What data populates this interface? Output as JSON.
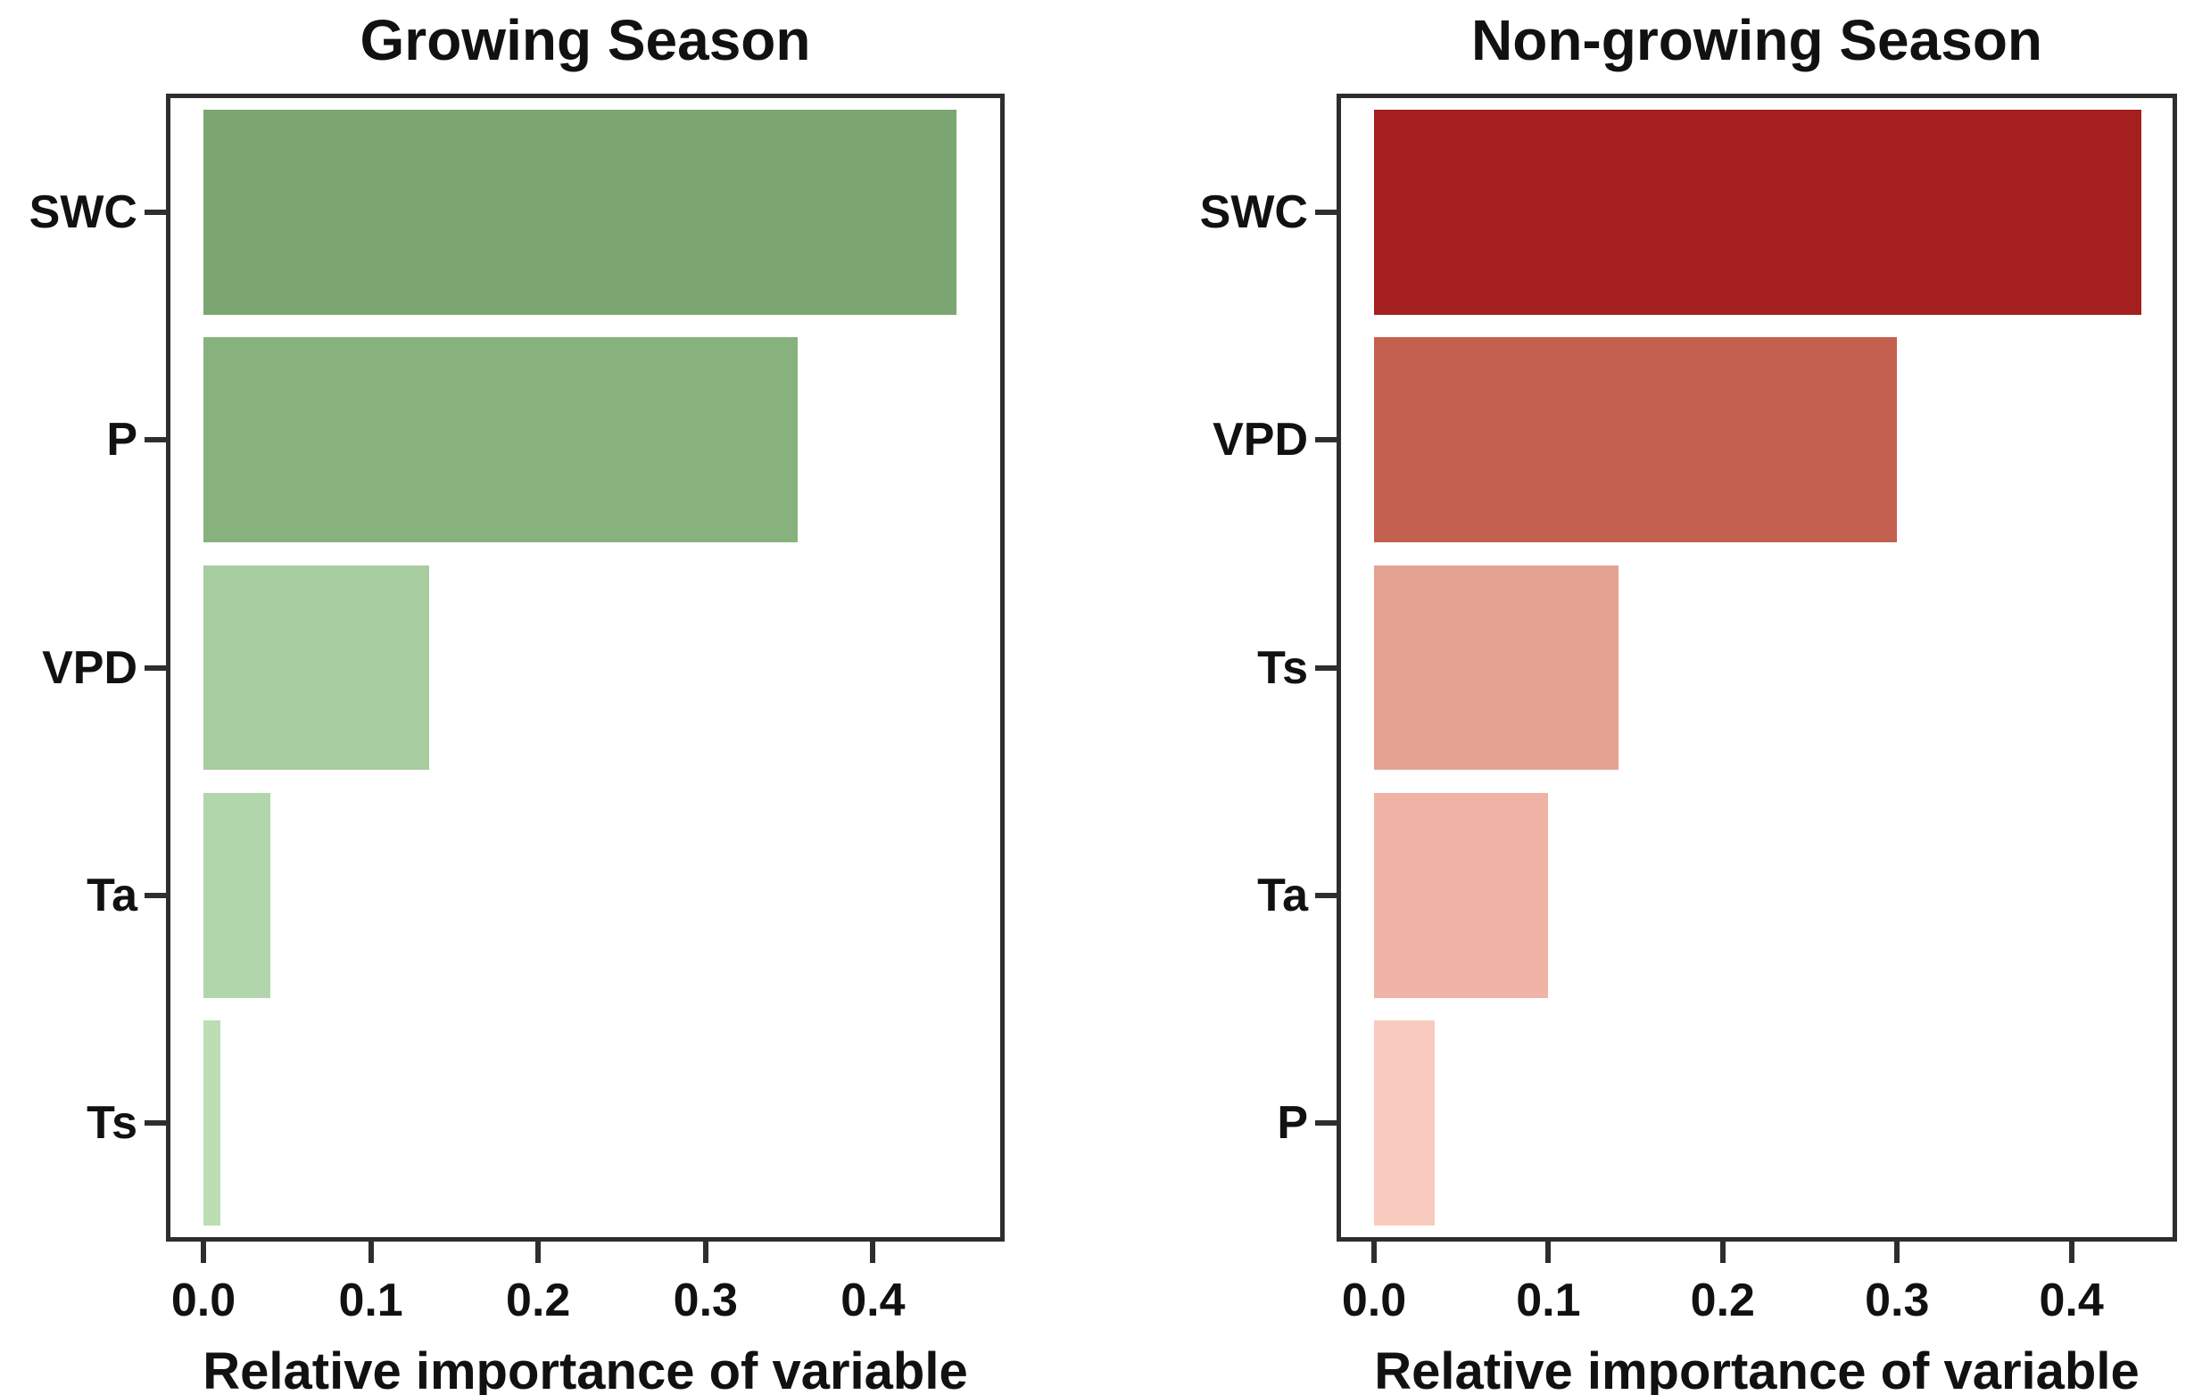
{
  "figure": {
    "background": "#ffffff",
    "text_color": "#111111",
    "panel_border_color": "#2e2e2e"
  },
  "chart_data": [
    {
      "type": "bar",
      "orientation": "horizontal",
      "title": "Growing Season",
      "categories": [
        "SWC",
        "P",
        "VPD",
        "Ta",
        "Ts"
      ],
      "values": [
        0.45,
        0.355,
        0.135,
        0.04,
        0.01
      ],
      "bar_colors": [
        "#7BA671",
        "#88B27D",
        "#A7CC9E",
        "#B1D6AB",
        "#BDDDB5"
      ],
      "xlabel": "Relative importance of variable",
      "ylabel": "",
      "xlim": [
        0,
        0.476
      ],
      "x_ticks": [
        "0.0",
        "0.1",
        "0.2",
        "0.3",
        "0.4"
      ],
      "x_tick_values": [
        0.0,
        0.1,
        0.2,
        0.3,
        0.4
      ],
      "grid": false,
      "legend": false
    },
    {
      "type": "bar",
      "orientation": "horizontal",
      "title": "Non-growing Season",
      "categories": [
        "SWC",
        "VPD",
        "Ts",
        "Ta",
        "P"
      ],
      "values": [
        0.44,
        0.3,
        0.14,
        0.1,
        0.035
      ],
      "bar_colors": [
        "#A51F1F",
        "#C4604F",
        "#E5A191",
        "#F0B3A5",
        "#F9CBBF"
      ],
      "xlabel": "Relative importance of variable",
      "ylabel": "",
      "xlim": [
        0,
        0.458
      ],
      "x_ticks": [
        "0.0",
        "0.1",
        "0.2",
        "0.3",
        "0.4"
      ],
      "x_tick_values": [
        0.0,
        0.1,
        0.2,
        0.3,
        0.4
      ],
      "grid": false,
      "legend": false
    }
  ]
}
